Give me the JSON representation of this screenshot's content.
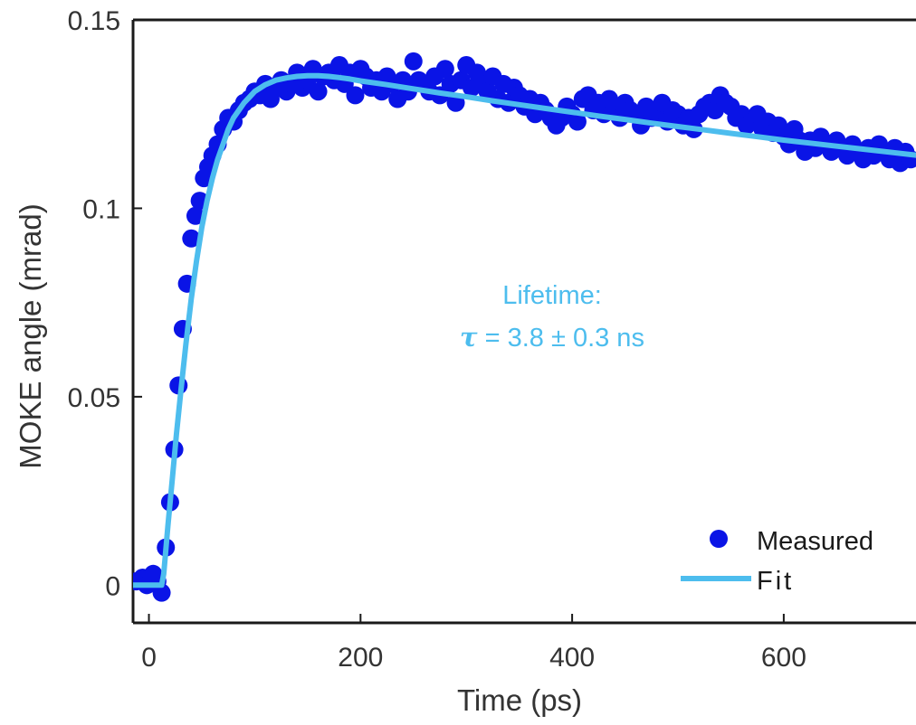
{
  "chart_data": {
    "type": "scatter",
    "xlabel": "Time (ps)",
    "ylabel": "MOKE angle (mrad)",
    "xlim": [
      -15,
      725
    ],
    "ylim": [
      -0.01,
      0.15
    ],
    "x_ticks": [
      0,
      200,
      400,
      600
    ],
    "x_tick_labels": [
      "0",
      "200",
      "400",
      "600"
    ],
    "y_ticks": [
      0,
      0.05,
      0.1,
      0.15
    ],
    "y_tick_labels": [
      "0",
      "0.05",
      "0.1",
      "0.15"
    ],
    "grid": false,
    "legend_position": "bottom-right",
    "annotation": {
      "line1": "Lifetime:",
      "tau_symbol": "τ",
      "line2": " = 3.8  ± 0.3 ns"
    },
    "colors": {
      "measured": "#0a14e6",
      "fit": "#4dbdee",
      "annotation": "#4dbdee",
      "axis": "#1a1a1a"
    },
    "series": [
      {
        "name": "Measured",
        "kind": "scatter",
        "x": [
          -12,
          -6,
          -2,
          4,
          8,
          12,
          16,
          20,
          24,
          28,
          32,
          36,
          40,
          44,
          48,
          52,
          56,
          60,
          65,
          70,
          75,
          80,
          85,
          90,
          95,
          100,
          105,
          110,
          115,
          120,
          125,
          130,
          135,
          140,
          145,
          150,
          155,
          160,
          165,
          170,
          175,
          180,
          185,
          190,
          195,
          200,
          205,
          210,
          215,
          220,
          225,
          230,
          235,
          240,
          245,
          250,
          255,
          260,
          265,
          270,
          275,
          280,
          285,
          290,
          295,
          300,
          305,
          310,
          315,
          320,
          325,
          330,
          335,
          340,
          345,
          350,
          355,
          360,
          365,
          370,
          375,
          380,
          385,
          390,
          395,
          400,
          405,
          410,
          415,
          420,
          425,
          430,
          435,
          440,
          445,
          450,
          455,
          460,
          465,
          470,
          475,
          480,
          485,
          490,
          495,
          500,
          505,
          510,
          515,
          520,
          525,
          530,
          535,
          540,
          545,
          550,
          555,
          560,
          565,
          570,
          575,
          580,
          585,
          590,
          595,
          600,
          605,
          610,
          615,
          620,
          625,
          630,
          635,
          640,
          645,
          650,
          655,
          660,
          665,
          670,
          675,
          680,
          685,
          690,
          695,
          700,
          705,
          710,
          715,
          720
        ],
        "y": [
          0.001,
          0.002,
          0.0,
          0.003,
          0.001,
          -0.002,
          0.01,
          0.022,
          0.036,
          0.053,
          0.068,
          0.08,
          0.092,
          0.098,
          0.102,
          0.108,
          0.111,
          0.114,
          0.117,
          0.121,
          0.124,
          0.123,
          0.126,
          0.128,
          0.129,
          0.131,
          0.13,
          0.133,
          0.129,
          0.132,
          0.134,
          0.131,
          0.133,
          0.136,
          0.132,
          0.134,
          0.137,
          0.131,
          0.135,
          0.136,
          0.134,
          0.138,
          0.133,
          0.136,
          0.13,
          0.137,
          0.135,
          0.132,
          0.134,
          0.131,
          0.135,
          0.133,
          0.129,
          0.134,
          0.131,
          0.139,
          0.134,
          0.133,
          0.131,
          0.135,
          0.13,
          0.137,
          0.133,
          0.128,
          0.134,
          0.138,
          0.132,
          0.136,
          0.133,
          0.131,
          0.135,
          0.129,
          0.133,
          0.128,
          0.132,
          0.13,
          0.127,
          0.129,
          0.125,
          0.128,
          0.126,
          0.124,
          0.122,
          0.124,
          0.127,
          0.125,
          0.123,
          0.129,
          0.13,
          0.126,
          0.128,
          0.125,
          0.129,
          0.127,
          0.124,
          0.128,
          0.126,
          0.125,
          0.122,
          0.127,
          0.124,
          0.126,
          0.128,
          0.123,
          0.126,
          0.125,
          0.122,
          0.124,
          0.121,
          0.125,
          0.127,
          0.128,
          0.126,
          0.13,
          0.128,
          0.127,
          0.124,
          0.125,
          0.122,
          0.123,
          0.125,
          0.121,
          0.123,
          0.12,
          0.122,
          0.119,
          0.117,
          0.121,
          0.118,
          0.115,
          0.118,
          0.116,
          0.119,
          0.117,
          0.115,
          0.118,
          0.116,
          0.114,
          0.117,
          0.115,
          0.113,
          0.116,
          0.114,
          0.117,
          0.115,
          0.113,
          0.116,
          0.112,
          0.115,
          0.113
        ]
      },
      {
        "name": "Fit",
        "kind": "line",
        "x": [
          -15,
          12,
          14,
          18,
          22,
          26,
          30,
          35,
          40,
          45,
          50,
          55,
          60,
          65,
          70,
          75,
          80,
          85,
          90,
          95,
          100,
          110,
          120,
          130,
          140,
          150,
          160,
          170,
          180,
          190,
          200,
          225,
          250,
          275,
          300,
          325,
          350,
          375,
          400,
          425,
          450,
          475,
          500,
          525,
          550,
          575,
          600,
          625,
          650,
          675,
          700,
          725
        ],
        "y": [
          0.0,
          0.0,
          0.003,
          0.016,
          0.028,
          0.04,
          0.051,
          0.064,
          0.076,
          0.086,
          0.095,
          0.102,
          0.108,
          0.113,
          0.117,
          0.121,
          0.124,
          0.126,
          0.128,
          0.1295,
          0.131,
          0.1328,
          0.134,
          0.1346,
          0.135,
          0.1352,
          0.1352,
          0.135,
          0.1347,
          0.1343,
          0.1338,
          0.1328,
          0.1317,
          0.1306,
          0.1296,
          0.1285,
          0.1275,
          0.1265,
          0.1255,
          0.1245,
          0.1236,
          0.1226,
          0.1217,
          0.1208,
          0.1199,
          0.119,
          0.1181,
          0.1173,
          0.1165,
          0.1157,
          0.1149,
          0.1141
        ]
      }
    ]
  }
}
